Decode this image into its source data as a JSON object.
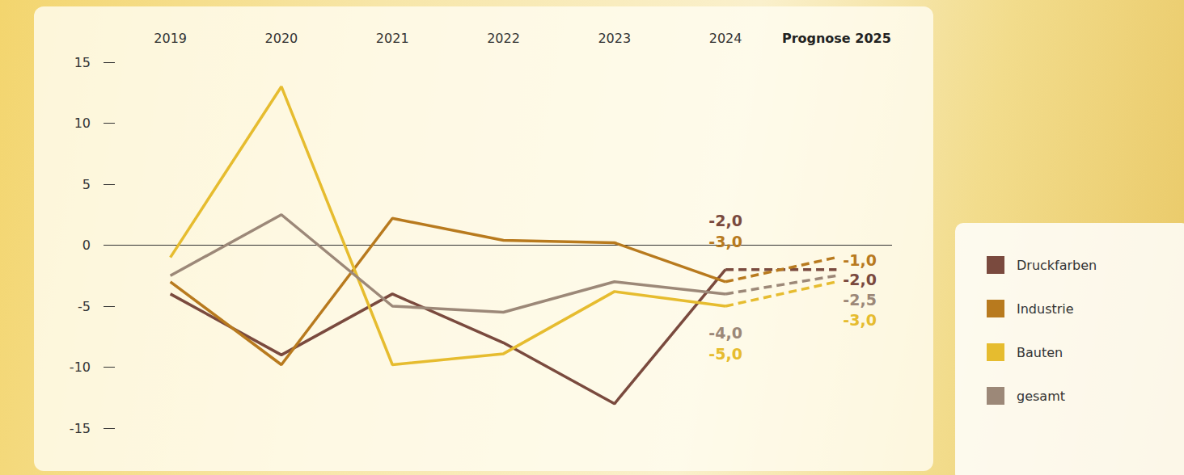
{
  "chart_data": {
    "type": "line",
    "categories": [
      "2019",
      "2020",
      "2021",
      "2022",
      "2023",
      "2024",
      "Prognose 2025"
    ],
    "series": [
      {
        "name": "Druckfarben",
        "color": "#7a4a3e",
        "values": [
          -4,
          -9,
          -4,
          -8,
          -13,
          -2,
          -2
        ],
        "value_labels": [
          null,
          null,
          null,
          null,
          null,
          "-2,0",
          "-2,0"
        ]
      },
      {
        "name": "Industrie",
        "color": "#b87a1e",
        "values": [
          -3,
          -9.8,
          2.2,
          0.4,
          0.2,
          -3,
          -1
        ],
        "value_labels": [
          null,
          null,
          null,
          null,
          null,
          "-3,0",
          "-1,0"
        ]
      },
      {
        "name": "Bauten",
        "color": "#e6bc2f",
        "values": [
          -1,
          13,
          -9.8,
          -8.9,
          -3.8,
          -5,
          -3
        ],
        "value_labels": [
          null,
          null,
          null,
          null,
          null,
          "-5,0",
          "-3,0"
        ]
      },
      {
        "name": "gesamt",
        "color": "#9c8878",
        "values": [
          -2.5,
          2.5,
          -5,
          -5.5,
          -3,
          -4,
          -2.5
        ],
        "value_labels": [
          null,
          null,
          null,
          null,
          null,
          "-4,0",
          "-2,5"
        ]
      }
    ],
    "ylim": [
      -15,
      15
    ],
    "yticks": [
      -15,
      -10,
      -5,
      0,
      5,
      10,
      15
    ],
    "data_labels": true,
    "legend": "right"
  }
}
